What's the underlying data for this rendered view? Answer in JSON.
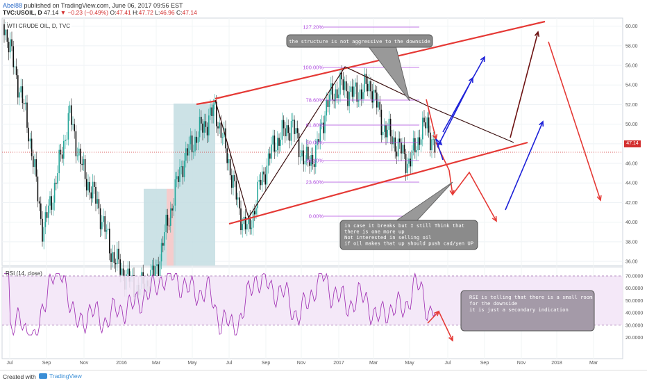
{
  "header": {
    "author": "Abel88",
    "published": " published on TradingView.com, June 06, 2017 09:56 EST"
  },
  "symbol_line": {
    "symbol": "TVC:USOIL, D",
    "last": "47.14",
    "change": "▼ −0.23 (−0.49%)",
    "open_label": "O:",
    "open": "47.41",
    "high_label": "H:",
    "high": "47.72",
    "low_label": "L:",
    "low": "46.96",
    "close_label": "C:",
    "close": "47.14"
  },
  "pane_title": "WTI CRUDE OIL, D, TVC",
  "rsi_title": "RSI (14, close)",
  "price_axis": [
    "60.00",
    "58.00",
    "56.00",
    "54.00",
    "52.00",
    "50.00",
    "48.00",
    "46.00",
    "44.00",
    "42.00",
    "40.00",
    "38.00",
    "36.00"
  ],
  "rsi_axis": [
    "70.0000",
    "60.0000",
    "50.0000",
    "40.0000",
    "30.0000",
    "20.0000"
  ],
  "current_price": "47.14",
  "time_axis": [
    "Jul",
    "Sep",
    "Nov",
    "2016",
    "Mar",
    "May",
    "Jul",
    "Sep",
    "Nov",
    "2017",
    "Mar",
    "May",
    "Jul",
    "Sep",
    "Nov",
    "2018",
    "Mar"
  ],
  "fib_levels": [
    "127.20%",
    "100.00%",
    "78.60%",
    "61.80%",
    "50.00%",
    "38.20%",
    "23.60%",
    "0.00%"
  ],
  "notes": {
    "top": "the structure is not aggressive to the downside",
    "mid": [
      "in case it breaks but I still Think that",
      "there is one more up",
      "Not interested in selling oil",
      "if oil makes that up should push cad/yen UP"
    ],
    "rsi": [
      "RSI is telling that there is a small room",
      "for the downside",
      "it is just a secondary indication"
    ]
  },
  "footer": {
    "created": "Created with",
    "brand": "TradingView"
  },
  "colors": {
    "bull": "#26a69a",
    "bear": "#ef5350",
    "channel": "#e53935",
    "rsi": "#9c27b0",
    "fib": "#b04be0",
    "blue_arrow": "#1e22d8",
    "dark_arrow": "#6d1212"
  }
}
